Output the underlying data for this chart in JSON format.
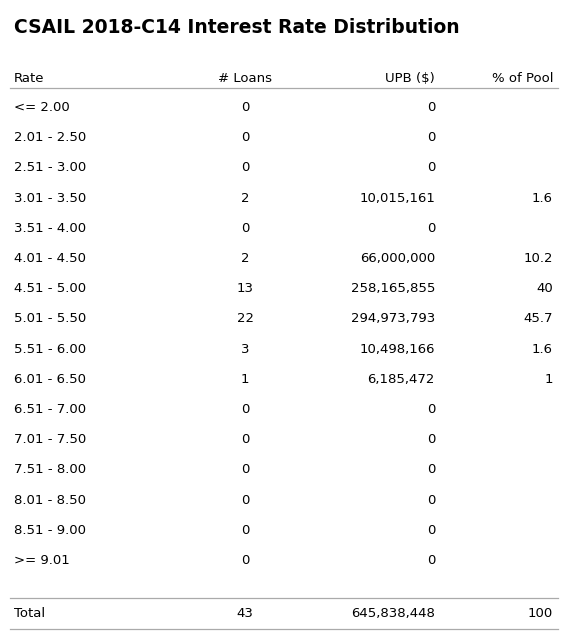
{
  "title": "CSAIL 2018-C14 Interest Rate Distribution",
  "columns": [
    "Rate",
    "# Loans",
    "UPB ($)",
    "% of Pool"
  ],
  "rows": [
    [
      "<= 2.00",
      "0",
      "0",
      ""
    ],
    [
      "2.01 - 2.50",
      "0",
      "0",
      ""
    ],
    [
      "2.51 - 3.00",
      "0",
      "0",
      ""
    ],
    [
      "3.01 - 3.50",
      "2",
      "10,015,161",
      "1.6"
    ],
    [
      "3.51 - 4.00",
      "0",
      "0",
      ""
    ],
    [
      "4.01 - 4.50",
      "2",
      "66,000,000",
      "10.2"
    ],
    [
      "4.51 - 5.00",
      "13",
      "258,165,855",
      "40"
    ],
    [
      "5.01 - 5.50",
      "22",
      "294,973,793",
      "45.7"
    ],
    [
      "5.51 - 6.00",
      "3",
      "10,498,166",
      "1.6"
    ],
    [
      "6.01 - 6.50",
      "1",
      "6,185,472",
      "1"
    ],
    [
      "6.51 - 7.00",
      "0",
      "0",
      ""
    ],
    [
      "7.01 - 7.50",
      "0",
      "0",
      ""
    ],
    [
      "7.51 - 8.00",
      "0",
      "0",
      ""
    ],
    [
      "8.01 - 8.50",
      "0",
      "0",
      ""
    ],
    [
      "8.51 - 9.00",
      "0",
      "0",
      ""
    ],
    [
      ">= 9.01",
      "0",
      "0",
      ""
    ]
  ],
  "total_row": [
    "Total",
    "43",
    "645,838,448",
    "100"
  ],
  "background_color": "#ffffff",
  "title_fontsize": 13.5,
  "header_fontsize": 9.5,
  "row_fontsize": 9.5,
  "line_color": "#aaaaaa",
  "font_family": "DejaVu Sans"
}
